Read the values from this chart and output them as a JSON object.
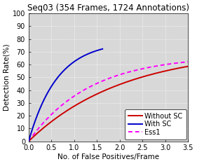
{
  "title": "Seq03 (354 Frames, 1724 Annotations)",
  "xlabel": "No. of False Positives/Frame",
  "ylabel": "Detection Rate(%)",
  "xlim": [
    0,
    3.5
  ],
  "ylim": [
    0,
    100
  ],
  "xticks": [
    0,
    0.5,
    1.0,
    1.5,
    2.0,
    2.5,
    3.0,
    3.5
  ],
  "yticks": [
    0,
    10,
    20,
    30,
    40,
    50,
    60,
    70,
    80,
    90,
    100
  ],
  "without_sc_color": "#cc0000",
  "with_sc_color": "#0000cc",
  "ess1_color": "#ff00ff",
  "legend_labels": [
    "Without SC",
    "With SC",
    "Ess1"
  ],
  "axes_bg_color": "#d8d8d8",
  "fig_bg_color": "#ffffff",
  "grid_color": "#ffffff",
  "title_fontsize": 8.5,
  "axis_fontsize": 7.5,
  "tick_fontsize": 7,
  "legend_fontsize": 7
}
